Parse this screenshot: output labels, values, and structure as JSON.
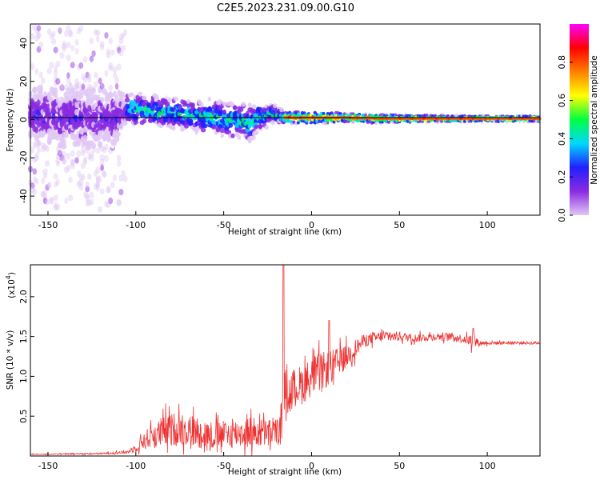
{
  "title": "C2E5.2023.231.09.00.G10",
  "chart_data": [
    {
      "type": "heatmap",
      "xlabel": "Height of straight line (km)",
      "ylabel": "Frequency (Hz)",
      "xlim": [
        -160,
        130
      ],
      "ylim": [
        -50,
        50
      ],
      "xticks": [
        -150,
        -100,
        -50,
        0,
        50,
        100
      ],
      "yticks": [
        -40,
        -20,
        0,
        20,
        40
      ],
      "colorbar": {
        "label": "Normalized spectral amplitude",
        "range": [
          0.0,
          1.0
        ],
        "ticks": [
          0.0,
          0.2,
          0.4,
          0.6,
          0.8
        ],
        "colormap": [
          "#ffffff",
          "#e0c8f5",
          "#8a2be2",
          "#2020ff",
          "#00d8ff",
          "#00ff40",
          "#ffff00",
          "#ff8000",
          "#ff0000",
          "#ff00ff"
        ]
      },
      "ridge": {
        "x": [
          -150,
          -130,
          -110,
          -105,
          -95,
          -85,
          -75,
          -65,
          -55,
          -45,
          -35,
          -28,
          -22,
          -15,
          -5,
          5,
          20,
          40,
          60,
          80,
          100,
          130
        ],
        "y": [
          2,
          0,
          1,
          6,
          5,
          4,
          3,
          2,
          1,
          0,
          -2,
          2,
          3,
          1,
          1,
          1,
          1,
          0.5,
          0.5,
          0.5,
          0.5,
          0.5
        ],
        "spread": [
          10,
          10,
          9,
          5,
          5,
          5,
          5,
          5,
          6,
          6,
          6,
          4,
          3,
          2,
          2,
          2,
          1.5,
          1.5,
          1.2,
          1,
          1,
          1
        ]
      }
    },
    {
      "type": "line",
      "xlabel": "Height of straight line (km)",
      "ylabel": "SNR (10 * v/v)",
      "yscale_label": "(x10",
      "yscale_exp": "4",
      "xlim": [
        -160,
        130
      ],
      "ylim": [
        0,
        2.4
      ],
      "xticks": [
        -150,
        -100,
        -50,
        0,
        50,
        100
      ],
      "yticks": [
        0.5,
        1.0,
        1.5,
        2.0
      ],
      "ytick_labels": [
        "0.5",
        "1.0",
        "1.5",
        "2.0"
      ],
      "color": "#ee3333",
      "envelope": {
        "x": [
          -160,
          -120,
          -105,
          -100,
          -95,
          -85,
          -75,
          -65,
          -55,
          -45,
          -35,
          -25,
          -20,
          -17,
          -15,
          -14,
          -12,
          -10,
          -5,
          0,
          5,
          10,
          20,
          30,
          40,
          50,
          60,
          70,
          80,
          90,
          92,
          95,
          110,
          130
        ],
        "mean": [
          0.02,
          0.03,
          0.05,
          0.1,
          0.2,
          0.3,
          0.35,
          0.3,
          0.25,
          0.28,
          0.3,
          0.28,
          0.3,
          0.35,
          0.9,
          0.75,
          0.8,
          0.85,
          0.9,
          1.0,
          1.05,
          1.1,
          1.25,
          1.45,
          1.5,
          1.5,
          1.48,
          1.5,
          1.5,
          1.45,
          1.45,
          1.42,
          1.42,
          1.42
        ],
        "noise": [
          0.005,
          0.01,
          0.02,
          0.05,
          0.12,
          0.2,
          0.22,
          0.2,
          0.18,
          0.18,
          0.2,
          0.18,
          0.18,
          0.2,
          0.25,
          0.25,
          0.25,
          0.25,
          0.25,
          0.25,
          0.25,
          0.22,
          0.15,
          0.08,
          0.07,
          0.06,
          0.05,
          0.05,
          0.05,
          0.06,
          0.15,
          0.03,
          0.02,
          0.02
        ]
      },
      "spikes": [
        {
          "x": -16,
          "y": 2.4
        },
        {
          "x": 10,
          "y": 1.7
        },
        {
          "x": 92,
          "y": 1.6
        }
      ]
    }
  ]
}
